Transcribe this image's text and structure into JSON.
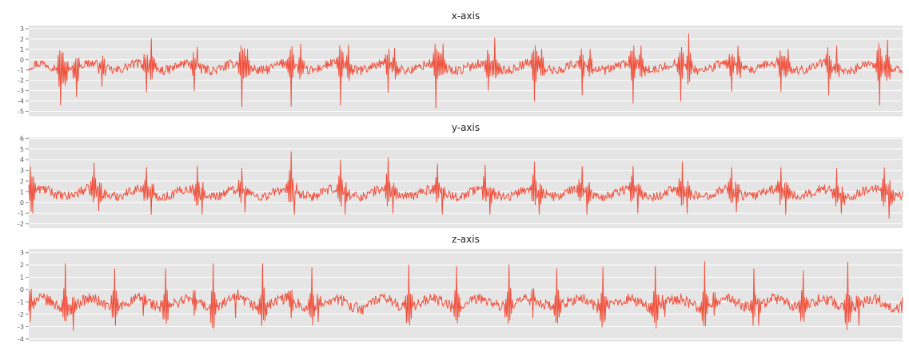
{
  "chart_data": [
    {
      "type": "line",
      "title": "x-axis",
      "ylim": [
        -5.5,
        3.3
      ],
      "yticks": [
        "3",
        "2",
        "1",
        "0",
        "-1",
        "-2",
        "-3",
        "-4",
        "-5"
      ],
      "grid": true,
      "background": "#e5e5e5",
      "line_color": "#f0503c",
      "series": [
        {
          "baseline": -0.7,
          "period": 61.5,
          "n": 1100,
          "peaks": [
            [
              40,
              -4.3
            ],
            [
              46,
              -2.5
            ],
            [
              60,
              -3.6
            ],
            [
              92,
              -2.6
            ],
            [
              148,
              -3.3
            ],
            [
              154,
              2.0
            ],
            [
              208,
              -3.4
            ],
            [
              212,
              1.2
            ],
            [
              268,
              -4.5
            ],
            [
              275,
              1.0
            ],
            [
              330,
              -4.5
            ],
            [
              342,
              1.5
            ],
            [
              392,
              -4.4
            ],
            [
              402,
              1.4
            ],
            [
              452,
              -3.2
            ],
            [
              460,
              1.1
            ],
            [
              512,
              -4.7
            ],
            [
              521,
              1.5
            ],
            [
              578,
              -3.0
            ],
            [
              586,
              2.1
            ],
            [
              636,
              -4.0
            ],
            [
              645,
              1.0
            ],
            [
              696,
              -3.4
            ],
            [
              706,
              1.0
            ],
            [
              760,
              -4.2
            ],
            [
              770,
              1.3
            ],
            [
              820,
              -4.0
            ],
            [
              830,
              2.5
            ],
            [
              884,
              -3.1
            ],
            [
              892,
              1.3
            ],
            [
              946,
              -3.1
            ],
            [
              955,
              1.0
            ],
            [
              1006,
              -3.4
            ],
            [
              1016,
              1.3
            ],
            [
              1070,
              -4.4
            ],
            [
              1080,
              1.9
            ]
          ]
        }
      ]
    },
    {
      "type": "line",
      "title": "y-axis",
      "ylim": [
        -2.4,
        6.1
      ],
      "yticks": [
        "6",
        "5",
        "4",
        "3",
        "2",
        "1",
        "0",
        "-1",
        "-2"
      ],
      "grid": true,
      "background": "#e5e5e5",
      "line_color": "#f0503c",
      "series": [
        {
          "baseline": 0.9,
          "period": 61.5,
          "n": 1100,
          "peaks": [
            [
              2,
              2.8
            ],
            [
              5,
              -1.0
            ],
            [
              82,
              3.8
            ],
            [
              88,
              -0.8
            ],
            [
              148,
              3.4
            ],
            [
              154,
              -1.1
            ],
            [
              212,
              3.5
            ],
            [
              218,
              -1.1
            ],
            [
              268,
              3.5
            ],
            [
              272,
              -0.9
            ],
            [
              330,
              5.1
            ],
            [
              334,
              -1.1
            ],
            [
              392,
              4.1
            ],
            [
              398,
              -1.1
            ],
            [
              452,
              4.3
            ],
            [
              458,
              -1.0
            ],
            [
              514,
              3.7
            ],
            [
              520,
              -1.1
            ],
            [
              574,
              3.6
            ],
            [
              580,
              -1.1
            ],
            [
              636,
              3.9
            ],
            [
              642,
              -1.1
            ],
            [
              696,
              3.5
            ],
            [
              702,
              -1.1
            ],
            [
              760,
              3.5
            ],
            [
              766,
              -1.0
            ],
            [
              822,
              3.9
            ],
            [
              828,
              -1.0
            ],
            [
              884,
              3.4
            ],
            [
              890,
              -0.9
            ],
            [
              946,
              3.4
            ],
            [
              952,
              -1.1
            ],
            [
              1016,
              3.3
            ],
            [
              1022,
              -1.0
            ],
            [
              1076,
              3.4
            ],
            [
              1082,
              -1.5
            ],
            [
              1125,
              -0.5
            ]
          ]
        }
      ]
    },
    {
      "type": "line",
      "title": "z-axis",
      "ylim": [
        -4.2,
        3.3
      ],
      "yticks": [
        "3",
        "2",
        "1",
        "0",
        "-1",
        "-2",
        "-3",
        "-4"
      ],
      "grid": true,
      "background": "#e5e5e5",
      "line_color": "#f0503c",
      "series": [
        {
          "baseline": -1.1,
          "period": 61.5,
          "n": 1100,
          "peaks": [
            [
              2,
              -2.6
            ],
            [
              46,
              2.1
            ],
            [
              56,
              -3.3
            ],
            [
              108,
              1.7
            ],
            [
              144,
              -2.1
            ],
            [
              172,
              1.7
            ],
            [
              208,
              -2.1
            ],
            [
              232,
              2.1
            ],
            [
              260,
              -2.3
            ],
            [
              294,
              2.1
            ],
            [
              330,
              -2.3
            ],
            [
              356,
              1.8
            ],
            [
              364,
              -2.6
            ],
            [
              420,
              -2.0
            ],
            [
              478,
              2.0
            ],
            [
              538,
              1.9
            ],
            [
              604,
              2.0
            ],
            [
              634,
              -2.3
            ],
            [
              664,
              1.7
            ],
            [
              722,
              1.8
            ],
            [
              788,
              1.9
            ],
            [
              800,
              -2.2
            ],
            [
              850,
              2.3
            ],
            [
              862,
              -2.1
            ],
            [
              912,
              1.8
            ],
            [
              918,
              -2.9
            ],
            [
              974,
              1.5
            ],
            [
              1030,
              2.2
            ],
            [
              1044,
              -2.9
            ],
            [
              1100,
              -2.0
            ]
          ]
        }
      ]
    }
  ]
}
